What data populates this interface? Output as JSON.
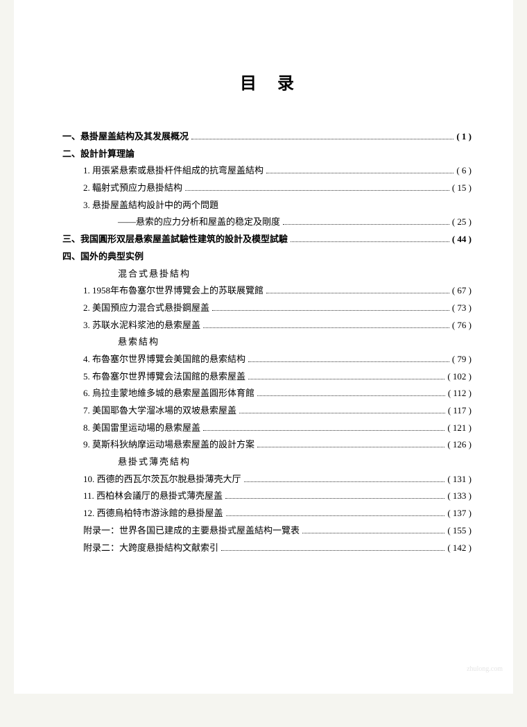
{
  "title": "目录",
  "sections": [
    {
      "heading": "一、悬掛屋盖結构及其发展概况",
      "heading_has_page": true,
      "page": "( 1 )",
      "items": []
    },
    {
      "heading": "二、設計計算理論",
      "heading_has_page": false,
      "items": [
        {
          "label": "1. 用張紧悬索或悬掛杆件組成的抗弯屋盖結构",
          "page": "( 6 )"
        },
        {
          "label": "2. 輻射式預应力悬掛結构",
          "page": "( 15 )"
        },
        {
          "label": "3. 悬掛屋盖結构設計中的两个問題",
          "page": ""
        },
        {
          "label": "——悬索的应力分析和屋盖的稳定及剛度",
          "page": "( 25 )",
          "indent": true
        }
      ]
    },
    {
      "heading": "三、我国圓形双层悬索屋盖試驗性建筑的設計及模型試驗",
      "heading_has_page": true,
      "page": "( 44 )",
      "items": []
    },
    {
      "heading": "四、国外的典型实例",
      "heading_has_page": false,
      "items": [
        {
          "subheading": "混合式悬掛結构"
        },
        {
          "label": "1. 1958年布魯塞尔世界博覽会上的苏联展覽館",
          "page": "( 67 )"
        },
        {
          "label": "2. 美国預应力混合式悬掛鋼屋盖",
          "page": "( 73 )"
        },
        {
          "label": "3. 苏联水泥料浆池的悬索屋盖",
          "page": "( 76 )"
        },
        {
          "subheading": "悬索結构"
        },
        {
          "label": "4. 布魯塞尔世界博覽会美国館的悬索結构",
          "page": "( 79 )"
        },
        {
          "label": "5. 布魯塞尔世界博覽会法国館的悬索屋盖",
          "page": "( 102 )"
        },
        {
          "label": "6. 烏拉圭蒙地維多城的悬索屋盖圓形体育館",
          "page": "( 112 )"
        },
        {
          "label": "7. 美国耶魯大学溜冰場的双坡悬索屋盖",
          "page": "( 117 )"
        },
        {
          "label": "8. 美国雷里运动場的悬索屋盖",
          "page": "( 121 )"
        },
        {
          "label": "9. 莫斯科狄納摩运动場悬索屋盖的設計方案",
          "page": "( 126 )"
        },
        {
          "subheading": "悬掛式薄壳結构"
        },
        {
          "label": "10. 西德的西瓦尔茨瓦尔脫悬掛薄壳大厅",
          "page": "( 131 )"
        },
        {
          "label": "11. 西柏林会議厅的悬掛式薄壳屋盖",
          "page": "( 133 )"
        },
        {
          "label": "12. 西德烏柏特市游泳館的悬掛屋盖",
          "page": "( 137 )"
        },
        {
          "label": "附录一：世界各国已建成的主要悬掛式屋盖結构一覽表",
          "page": "( 155 )"
        },
        {
          "label": "附录二：大跨度悬掛結构文献索引",
          "page": "( 142 )"
        }
      ]
    }
  ],
  "watermark": "zhulong.com"
}
